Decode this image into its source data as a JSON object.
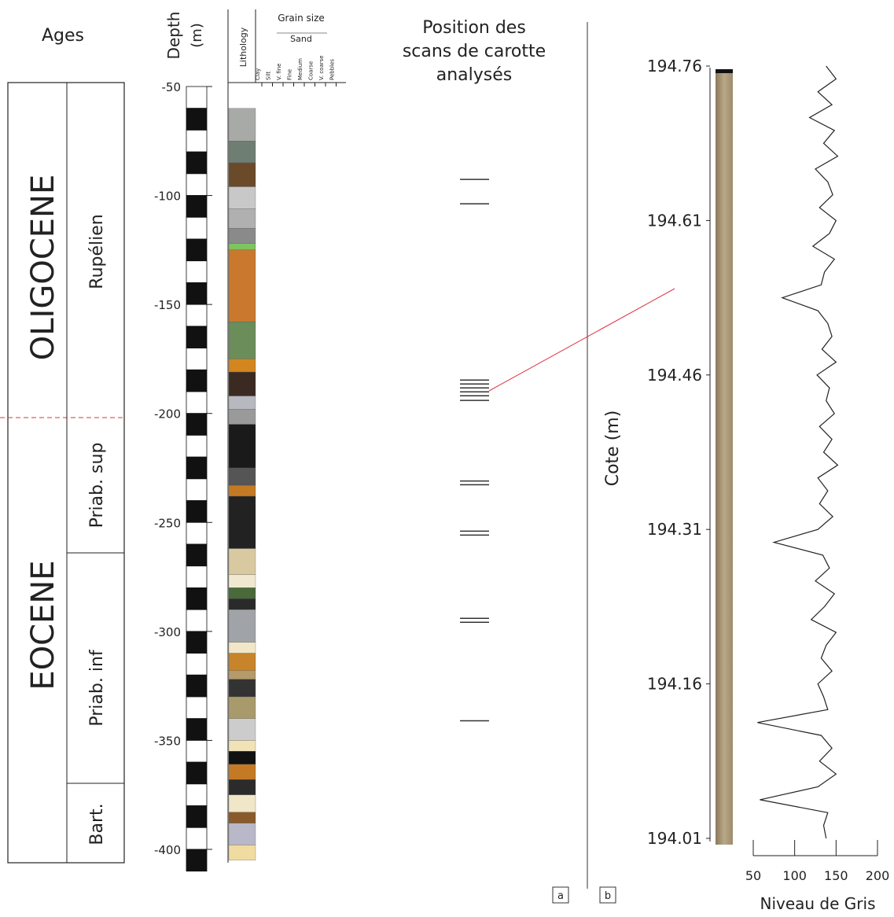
{
  "panel_a": {
    "ages_title": "Ages",
    "depth_label": "Depth",
    "depth_unit": "(m)",
    "ylim": [
      -50,
      -400
    ],
    "yticks": [
      -50,
      -100,
      -150,
      -200,
      -250,
      -300,
      -350,
      -400
    ],
    "lithology_label": "Lithology",
    "grain_size_label": "Grain size",
    "sand_label": "Sand",
    "grain_classes": [
      "Clay",
      "Silt",
      "V. fine",
      "Fine",
      "Medium",
      "Coarse",
      "V. coarse",
      "Pebbles"
    ],
    "epochs": [
      "OLIGOCENE",
      "EOCENE"
    ],
    "stages": [
      "Rupélien",
      "Priab. sup",
      "Priab. inf",
      "Bart."
    ],
    "lithology_layers": [
      {
        "top": -60,
        "bottom": -75,
        "color": "#a8aaa8"
      },
      {
        "top": -75,
        "bottom": -85,
        "color": "#6f7e72"
      },
      {
        "top": -85,
        "bottom": -96,
        "color": "#6b4a2a"
      },
      {
        "top": -96,
        "bottom": -106,
        "color": "#c8c8c8"
      },
      {
        "top": -106,
        "bottom": -115,
        "color": "#b0b0b0"
      },
      {
        "top": -115,
        "bottom": -122,
        "color": "#8a8a8a"
      },
      {
        "top": -122,
        "bottom": -125,
        "color": "#7cc560"
      },
      {
        "top": -125,
        "bottom": -158,
        "color": "#c9782e"
      },
      {
        "top": -158,
        "bottom": -175,
        "color": "#6a8d5a"
      },
      {
        "top": -175,
        "bottom": -181,
        "color": "#d4861e"
      },
      {
        "top": -181,
        "bottom": -192,
        "color": "#3a2a22"
      },
      {
        "top": -192,
        "bottom": -198,
        "color": "#b8b8c0"
      },
      {
        "top": -198,
        "bottom": -205,
        "color": "#9a9a9a"
      },
      {
        "top": -205,
        "bottom": -225,
        "color": "#1a1a1a"
      },
      {
        "top": -225,
        "bottom": -233,
        "color": "#555555"
      },
      {
        "top": -233,
        "bottom": -238,
        "color": "#c47a24"
      },
      {
        "top": -238,
        "bottom": -262,
        "color": "#222222"
      },
      {
        "top": -262,
        "bottom": -274,
        "color": "#d9c9a0"
      },
      {
        "top": -274,
        "bottom": -280,
        "color": "#f0e8d0"
      },
      {
        "top": -280,
        "bottom": -285,
        "color": "#4a6a3a"
      },
      {
        "top": -285,
        "bottom": -290,
        "color": "#2a2a2a"
      },
      {
        "top": -290,
        "bottom": -305,
        "color": "#a0a4a8"
      },
      {
        "top": -305,
        "bottom": -310,
        "color": "#f2e6c8"
      },
      {
        "top": -310,
        "bottom": -318,
        "color": "#c8842a"
      },
      {
        "top": -318,
        "bottom": -322,
        "color": "#b59a6a"
      },
      {
        "top": -322,
        "bottom": -330,
        "color": "#333333"
      },
      {
        "top": -330,
        "bottom": -340,
        "color": "#a89a6a"
      },
      {
        "top": -340,
        "bottom": -350,
        "color": "#cccccc"
      },
      {
        "top": -350,
        "bottom": -355,
        "color": "#f2e2b8"
      },
      {
        "top": -355,
        "bottom": -361,
        "color": "#111111"
      },
      {
        "top": -361,
        "bottom": -368,
        "color": "#c47a24"
      },
      {
        "top": -368,
        "bottom": -375,
        "color": "#2b2b2b"
      },
      {
        "top": -375,
        "bottom": -383,
        "color": "#f0e6c8"
      },
      {
        "top": -383,
        "bottom": -388,
        "color": "#8a5a2a"
      },
      {
        "top": -388,
        "bottom": -398,
        "color": "#b8b8c8"
      },
      {
        "top": -398,
        "bottom": -405,
        "color": "#f0dca0"
      }
    ],
    "scans_title": [
      "Position des",
      "scans de carotte",
      "analysés"
    ],
    "scan_depths": [
      -92.6,
      -103.8,
      -184.7,
      -186.5,
      -188.3,
      -190.1,
      -191.9,
      -194,
      -231,
      -232.7,
      -254,
      -255.8,
      -294,
      -295.8,
      -341
    ],
    "label": "a"
  },
  "panel_b": {
    "y_label": "Cote (m)",
    "x_label": "Niveau de Gris",
    "ylim": [
      194.01,
      194.76
    ],
    "yticks": [
      194.76,
      194.61,
      194.46,
      194.31,
      194.16,
      194.01
    ],
    "xlim": [
      50,
      200
    ],
    "xticks": [
      50,
      100,
      150,
      200
    ],
    "color": "#222222",
    "cote": [
      194.76,
      194.7475,
      194.735,
      194.7225,
      194.71,
      194.6975,
      194.685,
      194.6725,
      194.66,
      194.6475,
      194.635,
      194.6225,
      194.61,
      194.5975,
      194.585,
      194.5725,
      194.56,
      194.5475,
      194.535,
      194.5225,
      194.51,
      194.4975,
      194.485,
      194.4725,
      194.46,
      194.4475,
      194.435,
      194.4225,
      194.41,
      194.3975,
      194.385,
      194.3725,
      194.36,
      194.3475,
      194.335,
      194.3225,
      194.31,
      194.2975,
      194.285,
      194.2725,
      194.26,
      194.2475,
      194.235,
      194.2225,
      194.21,
      194.1975,
      194.185,
      194.1725,
      194.16,
      194.1475,
      194.135,
      194.1225,
      194.11,
      194.0975,
      194.085,
      194.0725,
      194.06,
      194.0475,
      194.035,
      194.0225,
      194.01
    ],
    "values": [
      138,
      150,
      128,
      145,
      118,
      148,
      135,
      152,
      125,
      140,
      146,
      130,
      150,
      142,
      122,
      148,
      136,
      132,
      85,
      128,
      140,
      145,
      133,
      150,
      127,
      142,
      138,
      148,
      130,
      145,
      135,
      152,
      128,
      140,
      130,
      146,
      128,
      75,
      134,
      142,
      125,
      148,
      136,
      120,
      150,
      138,
      132,
      145,
      128,
      135,
      140,
      55,
      132,
      145,
      130,
      150,
      128,
      58,
      140,
      135,
      138
    ],
    "label": "b"
  }
}
